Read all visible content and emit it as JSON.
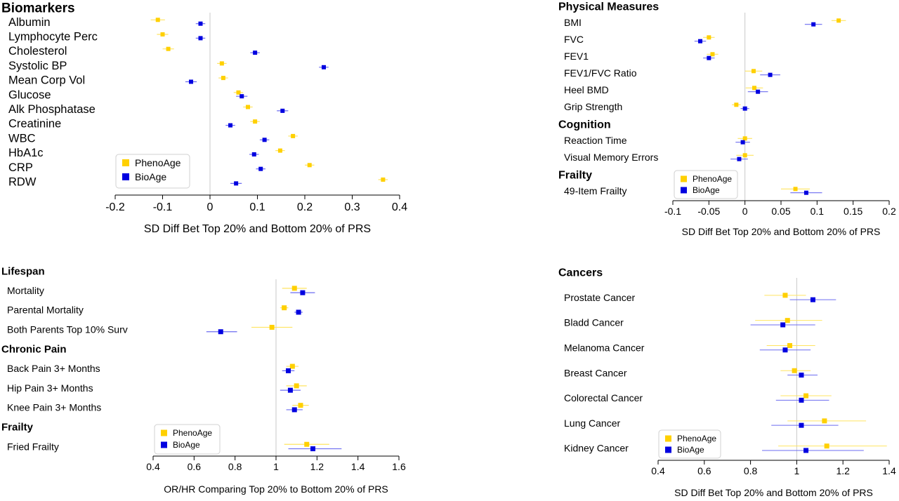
{
  "legend_labels": [
    "PhenoAge",
    "BioAge"
  ],
  "colors": {
    "phenoage": "#FFD000",
    "bioage": "#0000E0",
    "phenoage_ci": "#FFE460",
    "bioage_ci": "#6C6CF0",
    "refline": "#C8C8C8",
    "axis": "#000000"
  },
  "chart_data": [
    {
      "id": "biomarkers",
      "type": "forest",
      "xlabel": "SD Diff Bet Top 20% and Bottom 20% of PRS",
      "xlim": [
        -0.2,
        0.4
      ],
      "xticks": [
        -0.2,
        -0.1,
        0,
        0.1,
        0.2,
        0.3,
        0.4
      ],
      "tick_labels": [
        "-0.2",
        "-0.1",
        "0",
        "0.1",
        "0.2",
        "0.3",
        "0.4"
      ],
      "reference": 0,
      "legend_position": "bottom-left",
      "groups": [
        {
          "heading": "Biomarkers",
          "rows": [
            {
              "label": "Albumin",
              "phenoage": [
                -0.11,
                -0.125,
                -0.095
              ],
              "bioage": [
                -0.02,
                -0.03,
                -0.01
              ]
            },
            {
              "label": "Lymphocyte Perc",
              "phenoage": [
                -0.1,
                -0.112,
                -0.088
              ],
              "bioage": [
                -0.02,
                -0.03,
                -0.01
              ]
            },
            {
              "label": "Cholesterol",
              "phenoage": [
                -0.088,
                -0.1,
                -0.076
              ],
              "bioage": [
                0.095,
                0.085,
                0.105
              ]
            },
            {
              "label": "Systolic BP",
              "phenoage": [
                0.025,
                0.015,
                0.035
              ],
              "bioage": [
                0.24,
                0.23,
                0.25
              ]
            },
            {
              "label": "Mean Corp Vol",
              "phenoage": [
                0.028,
                0.018,
                0.038
              ],
              "bioage": [
                -0.04,
                -0.052,
                -0.028
              ]
            },
            {
              "label": "Glucose",
              "phenoage": [
                0.06,
                0.05,
                0.07
              ],
              "bioage": [
                0.067,
                0.055,
                0.079
              ]
            },
            {
              "label": "Alk Phosphatase",
              "phenoage": [
                0.08,
                0.07,
                0.09
              ],
              "bioage": [
                0.153,
                0.141,
                0.165
              ]
            },
            {
              "label": "Creatinine",
              "phenoage": [
                0.095,
                0.085,
                0.105
              ],
              "bioage": [
                0.043,
                0.033,
                0.053
              ]
            },
            {
              "label": "WBC",
              "phenoage": [
                0.175,
                0.165,
                0.185
              ],
              "bioage": [
                0.115,
                0.105,
                0.125
              ]
            },
            {
              "label": "HbA1c",
              "phenoage": [
                0.148,
                0.138,
                0.158
              ],
              "bioage": [
                0.093,
                0.083,
                0.103
              ]
            },
            {
              "label": "CRP",
              "phenoage": [
                0.21,
                0.2,
                0.22
              ],
              "bioage": [
                0.107,
                0.097,
                0.117
              ]
            },
            {
              "label": "RDW",
              "phenoage": [
                0.365,
                0.355,
                0.375
              ],
              "bioage": [
                0.055,
                0.043,
                0.067
              ]
            }
          ]
        }
      ]
    },
    {
      "id": "physical",
      "type": "forest",
      "xlabel": "SD Diff Bet Top 20% and Bottom 20% of PRS",
      "xlim": [
        -0.1,
        0.2
      ],
      "xticks": [
        -0.1,
        -0.05,
        0,
        0.05,
        0.1,
        0.15,
        0.2
      ],
      "tick_labels": [
        "-0.1",
        "-0.05",
        "0",
        "0.05",
        "0.1",
        "0.15",
        "0.2"
      ],
      "reference": 0,
      "legend_position": "bottom-middle",
      "groups": [
        {
          "heading": "Physical Measures",
          "rows": [
            {
              "label": "BMI",
              "phenoage": [
                0.13,
                0.12,
                0.14
              ],
              "bioage": [
                0.095,
                0.083,
                0.107
              ]
            },
            {
              "label": "FVC",
              "phenoage": [
                -0.05,
                -0.058,
                -0.042
              ],
              "bioage": [
                -0.062,
                -0.07,
                -0.054
              ]
            },
            {
              "label": "FEV1",
              "phenoage": [
                -0.045,
                -0.053,
                -0.037
              ],
              "bioage": [
                -0.05,
                -0.058,
                -0.042
              ]
            },
            {
              "label": "FEV1/FVC Ratio",
              "phenoage": [
                0.012,
                0.0,
                0.024
              ],
              "bioage": [
                0.035,
                0.021,
                0.049
              ]
            },
            {
              "label": "Heel BMD",
              "phenoage": [
                0.013,
                0.001,
                0.025
              ],
              "bioage": [
                0.018,
                0.004,
                0.032
              ]
            },
            {
              "label": "Grip Strength",
              "phenoage": [
                -0.012,
                -0.018,
                -0.006
              ],
              "bioage": [
                0.0,
                -0.006,
                0.006
              ]
            }
          ]
        },
        {
          "heading": "Cognition",
          "rows": [
            {
              "label": "Reaction Time",
              "phenoage": [
                0.0,
                -0.01,
                0.01
              ],
              "bioage": [
                -0.003,
                -0.013,
                0.007
              ]
            },
            {
              "label": "Visual Memory Errors",
              "phenoage": [
                0.0,
                -0.012,
                0.012
              ],
              "bioage": [
                -0.008,
                -0.02,
                0.004
              ]
            }
          ]
        },
        {
          "heading": "Frailty",
          "rows": [
            {
              "label": "49-Item Frailty",
              "phenoage": [
                0.07,
                0.05,
                0.09
              ],
              "bioage": [
                0.085,
                0.063,
                0.107
              ]
            }
          ]
        }
      ]
    },
    {
      "id": "lifespan",
      "type": "forest",
      "xlabel": "OR/HR Comparing Top 20% to Bottom 20% of PRS",
      "xlim": [
        0.4,
        1.6
      ],
      "xticks": [
        0.4,
        0.6,
        0.8,
        1.0,
        1.2,
        1.4,
        1.6
      ],
      "tick_labels": [
        "0.4",
        "0.6",
        "0.8",
        "1",
        "1.2",
        "1.4",
        "1.6"
      ],
      "reference": 1.0,
      "legend_position": "bottom-left",
      "groups": [
        {
          "heading": "Lifespan",
          "rows": [
            {
              "label": "Mortality",
              "phenoage": [
                1.09,
                1.03,
                1.15
              ],
              "bioage": [
                1.13,
                1.07,
                1.19
              ]
            },
            {
              "label": "Parental Mortality",
              "phenoage": [
                1.04,
                1.02,
                1.06
              ],
              "bioage": [
                1.11,
                1.09,
                1.13
              ]
            },
            {
              "label": "Both Parents Top 10% Surv",
              "phenoage": [
                0.98,
                0.88,
                1.08
              ],
              "bioage": [
                0.73,
                0.66,
                0.81
              ]
            }
          ]
        },
        {
          "heading": "Chronic Pain",
          "rows": [
            {
              "label": "Back Pain 3+ Months",
              "phenoage": [
                1.08,
                1.05,
                1.11
              ],
              "bioage": [
                1.06,
                1.03,
                1.09
              ]
            },
            {
              "label": "Hip Pain 3+ Months",
              "phenoage": [
                1.1,
                1.05,
                1.15
              ],
              "bioage": [
                1.07,
                1.02,
                1.12
              ]
            },
            {
              "label": "Knee Pain 3+ Months",
              "phenoage": [
                1.12,
                1.08,
                1.16
              ],
              "bioage": [
                1.09,
                1.05,
                1.13
              ]
            }
          ]
        },
        {
          "heading": "Frailty",
          "rows": [
            {
              "label": "Fried Frailty",
              "phenoage": [
                1.15,
                1.04,
                1.26
              ],
              "bioage": [
                1.18,
                1.06,
                1.32
              ]
            }
          ]
        }
      ]
    },
    {
      "id": "cancers",
      "type": "forest",
      "xlabel": "SD Diff Bet Top 20% and Bottom 20% of PRS",
      "xlim": [
        0.4,
        1.4
      ],
      "xticks": [
        0.4,
        0.6,
        0.8,
        1.0,
        1.2,
        1.4
      ],
      "tick_labels": [
        "0.4",
        "0.6",
        "0.8",
        "1",
        "1.2",
        "1.4"
      ],
      "reference": 1.0,
      "legend_position": "bottom-left",
      "groups": [
        {
          "heading": "Cancers",
          "rows": [
            {
              "label": "Prostate Cancer",
              "phenoage": [
                0.95,
                0.86,
                1.04
              ],
              "bioage": [
                1.07,
                0.97,
                1.17
              ]
            },
            {
              "label": "Bladd Cancer",
              "phenoage": [
                0.96,
                0.82,
                1.11
              ],
              "bioage": [
                0.94,
                0.8,
                1.08
              ]
            },
            {
              "label": "Melanoma Cancer",
              "phenoage": [
                0.97,
                0.87,
                1.08
              ],
              "bioage": [
                0.95,
                0.84,
                1.06
              ]
            },
            {
              "label": "Breast Cancer",
              "phenoage": [
                0.99,
                0.93,
                1.06
              ],
              "bioage": [
                1.02,
                0.96,
                1.09
              ]
            },
            {
              "label": "Colorectal Cancer",
              "phenoage": [
                1.04,
                0.93,
                1.15
              ],
              "bioage": [
                1.02,
                0.91,
                1.14
              ]
            },
            {
              "label": "Lung Cancer",
              "phenoage": [
                1.12,
                0.96,
                1.3
              ],
              "bioage": [
                1.02,
                0.89,
                1.18
              ]
            },
            {
              "label": "Kidney Cancer",
              "phenoage": [
                1.13,
                0.92,
                1.39
              ],
              "bioage": [
                1.04,
                0.85,
                1.29
              ]
            }
          ]
        }
      ]
    }
  ]
}
